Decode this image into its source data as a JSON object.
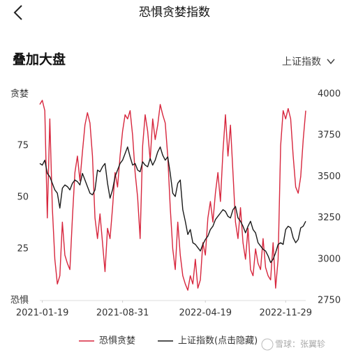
{
  "header": {
    "title": "恐惧贪婪指数"
  },
  "section": {
    "title": "叠加大盘",
    "selector": "上证指数"
  },
  "watermark": "雪球：张翼轸",
  "chart_data": {
    "type": "line",
    "x": [
      "2021-01-12",
      "2021-01-19",
      "2021-01-26",
      "2021-02-02",
      "2021-02-09",
      "2021-02-16",
      "2021-02-23",
      "2021-03-02",
      "2021-03-09",
      "2021-03-16",
      "2021-03-23",
      "2021-03-30",
      "2021-04-06",
      "2021-04-13",
      "2021-04-20",
      "2021-04-27",
      "2021-05-04",
      "2021-05-11",
      "2021-05-18",
      "2021-05-25",
      "2021-06-01",
      "2021-06-08",
      "2021-06-15",
      "2021-06-22",
      "2021-06-29",
      "2021-07-06",
      "2021-07-13",
      "2021-07-20",
      "2021-07-27",
      "2021-08-03",
      "2021-08-10",
      "2021-08-17",
      "2021-08-24",
      "2021-08-31",
      "2021-09-07",
      "2021-09-14",
      "2021-09-21",
      "2021-09-28",
      "2021-10-05",
      "2021-10-12",
      "2021-10-19",
      "2021-10-26",
      "2021-11-02",
      "2021-11-09",
      "2021-11-16",
      "2021-11-23",
      "2021-11-30",
      "2021-12-07",
      "2021-12-14",
      "2021-12-21",
      "2021-12-28",
      "2022-01-04",
      "2022-01-11",
      "2022-01-18",
      "2022-01-25",
      "2022-02-01",
      "2022-02-08",
      "2022-02-15",
      "2022-02-22",
      "2022-03-01",
      "2022-03-08",
      "2022-03-15",
      "2022-03-22",
      "2022-03-29",
      "2022-04-05",
      "2022-04-12",
      "2022-04-19",
      "2022-04-26",
      "2022-05-03",
      "2022-05-10",
      "2022-05-17",
      "2022-05-24",
      "2022-05-31",
      "2022-06-07",
      "2022-06-14",
      "2022-06-21",
      "2022-06-28",
      "2022-07-05",
      "2022-07-12",
      "2022-07-19",
      "2022-07-26",
      "2022-08-02",
      "2022-08-09",
      "2022-08-16",
      "2022-08-23",
      "2022-08-30",
      "2022-09-06",
      "2022-09-13",
      "2022-09-20",
      "2022-09-27",
      "2022-10-04",
      "2022-10-11",
      "2022-10-18",
      "2022-10-25",
      "2022-11-01",
      "2022-11-08",
      "2022-11-15",
      "2022-11-22",
      "2022-11-29",
      "2022-12-06",
      "2022-12-13",
      "2022-12-20",
      "2022-12-27",
      "2023-01-03",
      "2023-01-10",
      "2023-01-17",
      "2023-01-24"
    ],
    "series": [
      {
        "name": "恐惧贪婪",
        "color": "#d7263d",
        "axis": "y",
        "values": [
          95,
          97,
          92,
          40,
          88,
          45,
          20,
          8,
          12,
          38,
          22,
          18,
          15,
          40,
          62,
          70,
          58,
          72,
          85,
          91,
          86,
          70,
          40,
          30,
          42,
          28,
          14,
          35,
          30,
          45,
          62,
          55,
          70,
          82,
          90,
          88,
          92,
          80,
          62,
          50,
          30,
          75,
          90,
          82,
          68,
          88,
          78,
          85,
          95,
          90,
          86,
          70,
          45,
          25,
          15,
          38,
          22,
          12,
          8,
          5,
          12,
          8,
          20,
          6,
          10,
          28,
          22,
          40,
          48,
          38,
          52,
          62,
          48,
          72,
          90,
          70,
          85,
          62,
          38,
          30,
          45,
          28,
          20,
          35,
          15,
          12,
          25,
          18,
          15,
          30,
          16,
          12,
          10,
          28,
          6,
          20,
          75,
          92,
          88,
          93,
          88,
          70,
          55,
          52,
          60,
          78,
          92
        ]
      },
      {
        "name": "上证指数(点击隐藏)",
        "color": "#1a1a1a",
        "axis": "y2",
        "values": [
          3580,
          3570,
          3600,
          3520,
          3500,
          3460,
          3420,
          3400,
          3310,
          3430,
          3450,
          3440,
          3420,
          3460,
          3480,
          3470,
          3450,
          3520,
          3480,
          3440,
          3400,
          3390,
          3420,
          3540,
          3530,
          3560,
          3580,
          3460,
          3370,
          3420,
          3500,
          3540,
          3580,
          3600,
          3640,
          3680,
          3620,
          3570,
          3580,
          3540,
          3530,
          3590,
          3570,
          3560,
          3610,
          3570,
          3600,
          3650,
          3680,
          3630,
          3600,
          3620,
          3520,
          3400,
          3380,
          3460,
          3480,
          3300,
          3230,
          3150,
          3180,
          3100,
          3090,
          3070,
          3050,
          3090,
          3120,
          3140,
          3180,
          3200,
          3240,
          3260,
          3280,
          3300,
          3290,
          3260,
          3250,
          3300,
          3320,
          3250,
          3230,
          3200,
          3160,
          3200,
          3230,
          3180,
          3160,
          3100,
          3080,
          3060,
          3050,
          3020,
          2980,
          3000,
          3040,
          3090,
          3100,
          3090,
          3180,
          3200,
          3190,
          3130,
          3100,
          3120,
          3190,
          3200,
          3230
        ]
      }
    ],
    "xlim": [
      "2021-01-12",
      "2023-01-24"
    ],
    "xticks": [
      "2021-01-19",
      "2021-08-31",
      "2022-04-19",
      "2022-11-29"
    ],
    "ylim": [
      0,
      100
    ],
    "yticks": [
      {
        "value": 100,
        "label": "贪婪"
      },
      75,
      50,
      25,
      {
        "value": 0,
        "label": "恐惧"
      }
    ],
    "y2lim": [
      2750,
      4000
    ],
    "y2ticks": [
      4000,
      3750,
      3500,
      3250,
      3000,
      2750
    ],
    "grid": false
  }
}
